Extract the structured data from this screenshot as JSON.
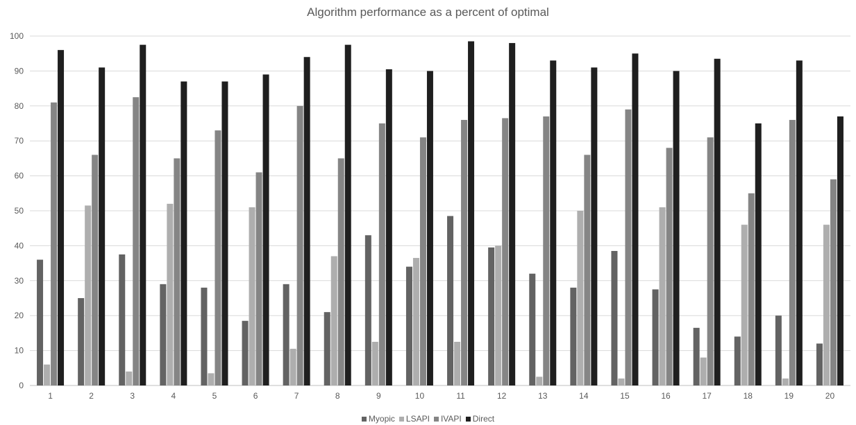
{
  "chart_data": {
    "type": "bar",
    "title": "Algorithm performance as a percent of optimal",
    "xlabel": "",
    "ylabel": "",
    "categories": [
      "1",
      "2",
      "3",
      "4",
      "5",
      "6",
      "7",
      "8",
      "9",
      "10",
      "11",
      "12",
      "13",
      "14",
      "15",
      "16",
      "17",
      "18",
      "19",
      "20"
    ],
    "ylim": [
      0,
      100
    ],
    "ytick_step": 10,
    "grid": true,
    "legend_position": "bottom",
    "series": [
      {
        "name": "Myopic",
        "color": "#636363",
        "values": [
          36,
          25,
          37.5,
          29,
          28,
          18.5,
          29,
          21,
          43,
          34,
          48.5,
          39.5,
          32,
          28,
          38.5,
          27.5,
          16.5,
          14,
          20,
          12
        ]
      },
      {
        "name": "LSAPI",
        "color": "#aeaeae",
        "values": [
          6,
          51.5,
          4,
          52,
          3.5,
          51,
          10.5,
          37,
          12.5,
          36.5,
          12.5,
          40,
          2.5,
          50,
          2,
          51,
          8,
          46,
          2,
          46
        ]
      },
      {
        "name": "IVAPI",
        "color": "#858585",
        "values": [
          81,
          66,
          82.5,
          65,
          73,
          61,
          80,
          65,
          75,
          71,
          76,
          76.5,
          77,
          66,
          79,
          68,
          71,
          55,
          76,
          59
        ]
      },
      {
        "name": "Direct",
        "color": "#1f1f1f",
        "values": [
          96,
          91,
          97.5,
          87,
          87,
          89,
          94,
          97.5,
          90.5,
          90,
          98.5,
          98,
          93,
          91,
          95,
          90,
          93.5,
          75,
          93,
          77
        ]
      }
    ]
  }
}
